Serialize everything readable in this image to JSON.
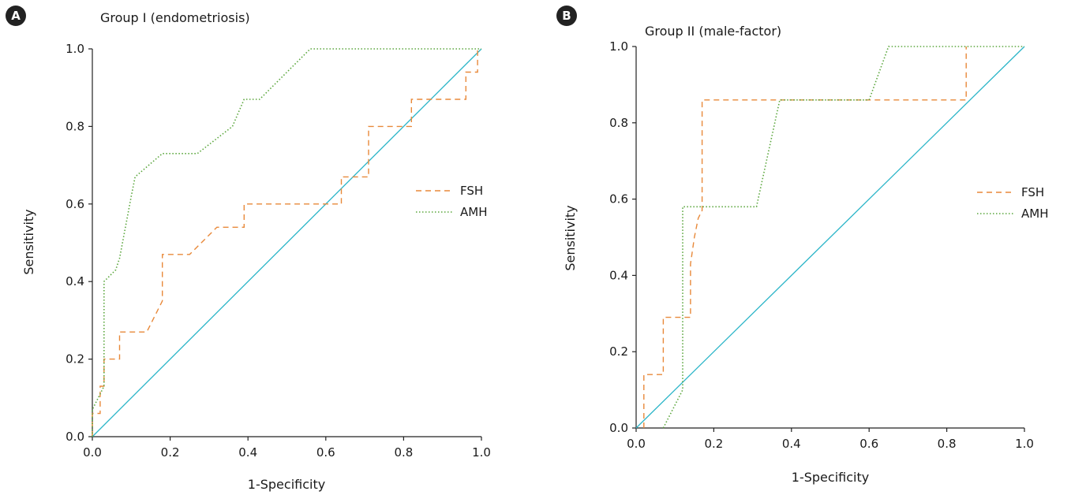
{
  "chart_data": [
    {
      "type": "line",
      "panel": "A",
      "title": "Group I (endometriosis)",
      "xlabel": "1-Specificity",
      "ylabel": "Sensitivity",
      "xlim": [
        0,
        1
      ],
      "ylim": [
        0,
        1
      ],
      "xticks": [
        "0.0",
        "0.2",
        "0.4",
        "0.6",
        "0.8",
        "1.0"
      ],
      "yticks": [
        "0.0",
        "0.2",
        "0.4",
        "0.6",
        "0.8",
        "1.0"
      ],
      "grid": false,
      "legend_position": "right",
      "reference_line": {
        "x": [
          0,
          1
        ],
        "y": [
          0,
          1
        ],
        "color": "#2bb5c8"
      },
      "series": [
        {
          "name": "FSH",
          "color": "#e8893a",
          "style": "dashed",
          "x": [
            0.0,
            0.0,
            0.02,
            0.02,
            0.03,
            0.03,
            0.04,
            0.05,
            0.06,
            0.06,
            0.07,
            0.07,
            0.14,
            0.14,
            0.17,
            0.18,
            0.18,
            0.25,
            0.32,
            0.32,
            0.36,
            0.36,
            0.39,
            0.39,
            0.64,
            0.64,
            0.71,
            0.71,
            0.82,
            0.82,
            0.96,
            0.96,
            0.99,
            0.99
          ],
          "y": [
            0.0,
            0.06,
            0.06,
            0.13,
            0.13,
            0.2,
            0.2,
            0.2,
            0.2,
            0.2,
            0.2,
            0.27,
            0.27,
            0.27,
            0.33,
            0.35,
            0.47,
            0.47,
            0.54,
            0.54,
            0.54,
            0.54,
            0.54,
            0.6,
            0.6,
            0.67,
            0.67,
            0.8,
            0.8,
            0.87,
            0.87,
            0.94,
            0.94,
            1.0
          ]
        },
        {
          "name": "AMH",
          "color": "#5aa63c",
          "style": "dotted",
          "x": [
            0.0,
            0.0,
            0.03,
            0.03,
            0.06,
            0.07,
            0.1,
            0.11,
            0.18,
            0.27,
            0.36,
            0.39,
            0.39,
            0.43,
            0.56,
            0.57,
            1.0
          ],
          "y": [
            0.0,
            0.07,
            0.13,
            0.4,
            0.43,
            0.46,
            0.62,
            0.67,
            0.73,
            0.73,
            0.8,
            0.87,
            0.87,
            0.87,
            1.0,
            1.0,
            1.0
          ]
        }
      ]
    },
    {
      "type": "line",
      "panel": "B",
      "title": "Group II (male-factor)",
      "xlabel": "1-Specificity",
      "ylabel": "Sensitivity",
      "xlim": [
        0,
        1
      ],
      "ylim": [
        0,
        1
      ],
      "xticks": [
        "0.0",
        "0.2",
        "0.4",
        "0.6",
        "0.8",
        "1.0"
      ],
      "yticks": [
        "0.0",
        "0.2",
        "0.4",
        "0.6",
        "0.8",
        "1.0"
      ],
      "grid": false,
      "legend_position": "right",
      "reference_line": {
        "x": [
          0,
          1
        ],
        "y": [
          0,
          1
        ],
        "color": "#2bb5c8"
      },
      "series": [
        {
          "name": "FSH",
          "color": "#e8893a",
          "style": "dashed",
          "x": [
            0.02,
            0.02,
            0.07,
            0.07,
            0.14,
            0.14,
            0.15,
            0.16,
            0.17,
            0.17,
            0.85,
            0.85
          ],
          "y": [
            0.0,
            0.14,
            0.14,
            0.29,
            0.29,
            0.43,
            0.5,
            0.55,
            0.57,
            0.86,
            0.86,
            1.0
          ]
        },
        {
          "name": "AMH",
          "color": "#5aa63c",
          "style": "dotted",
          "x": [
            0.07,
            0.07,
            0.12,
            0.12,
            0.31,
            0.37,
            0.37,
            0.6,
            0.65,
            0.66,
            1.0
          ],
          "y": [
            0.0,
            0.0,
            0.1,
            0.58,
            0.58,
            0.86,
            0.86,
            0.86,
            1.0,
            1.0,
            1.0
          ]
        }
      ]
    }
  ]
}
